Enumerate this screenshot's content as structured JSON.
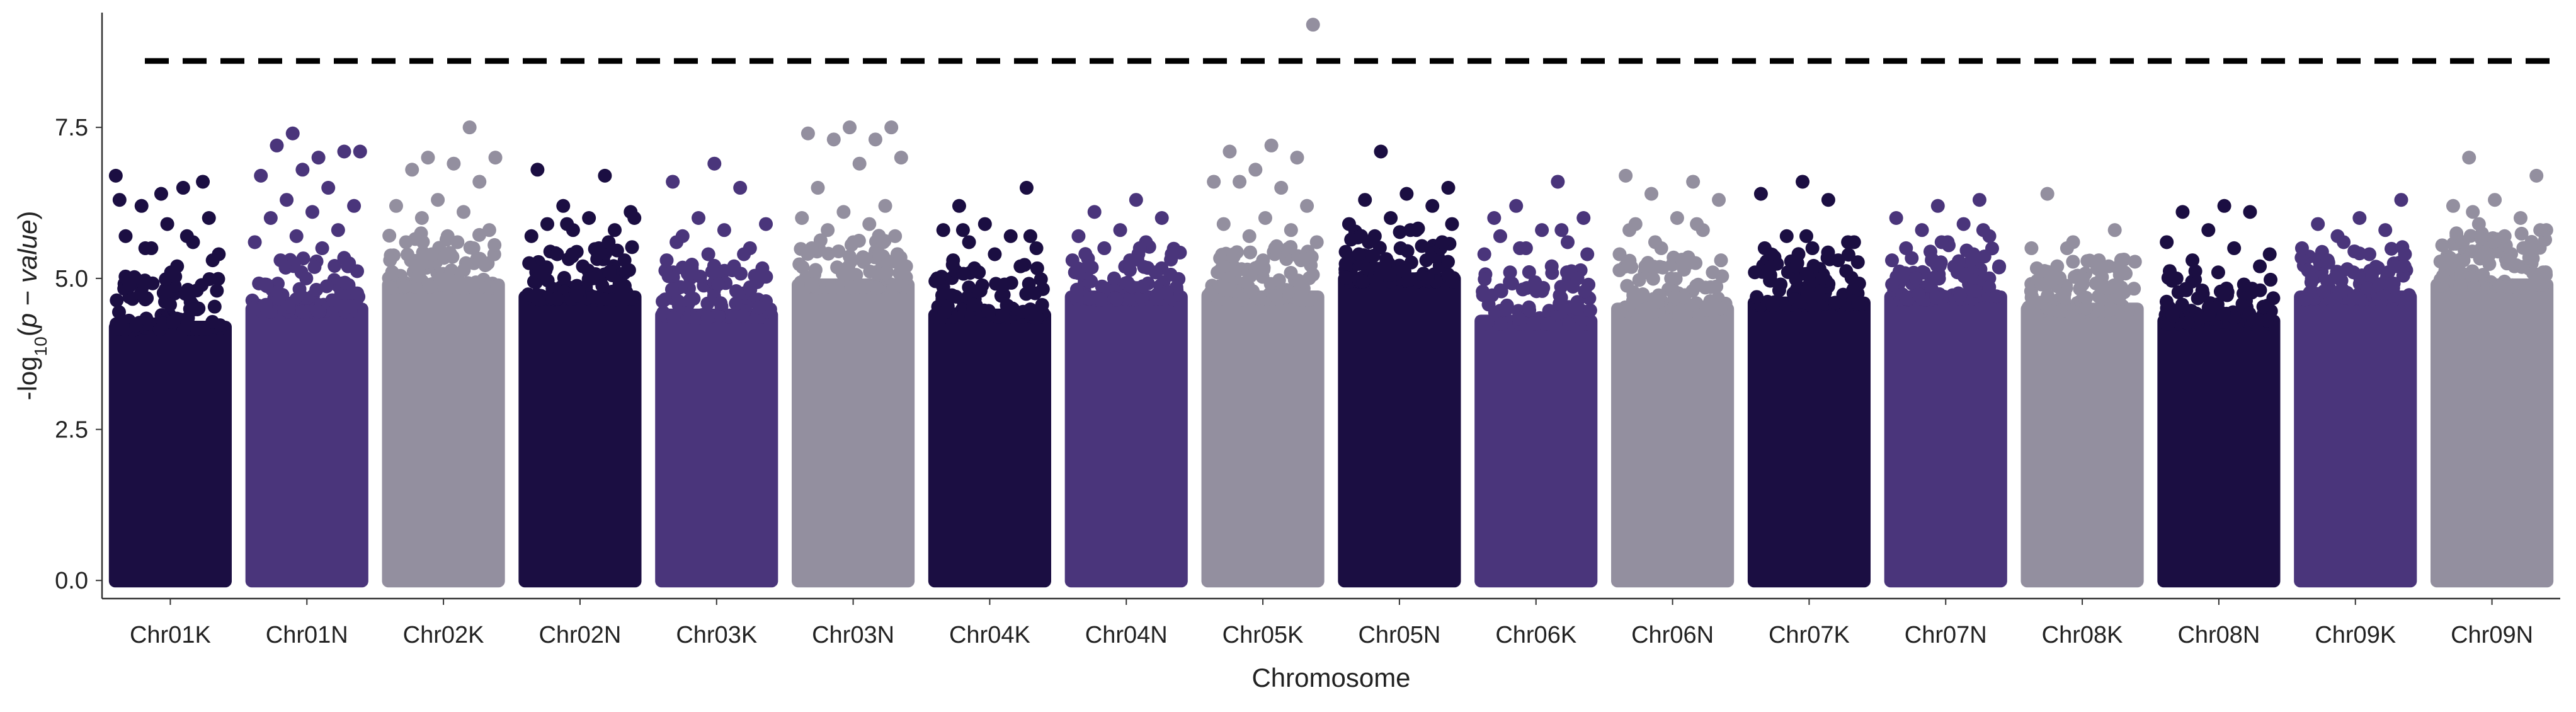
{
  "chart_data": {
    "type": "scatter",
    "subtype": "manhattan",
    "title": "",
    "xlabel": "Chromosome",
    "ylabel": {
      "prefix": "-log",
      "subscript": "10",
      "open": "(",
      "p": "p",
      "minus": " − ",
      "value": "value",
      "close": ")"
    },
    "ylim": [
      -0.3,
      9.4
    ],
    "yticks": [
      0.0,
      2.5,
      5.0,
      7.5
    ],
    "ytick_labels": [
      "0.0",
      "2.5",
      "5.0",
      "7.5"
    ],
    "grid": false,
    "legend": "none",
    "threshold": 8.6,
    "threshold_style": "dashed",
    "colors": [
      "#1b0e42",
      "#4a357b",
      "#938f9f"
    ],
    "categories": [
      "Chr01K",
      "Chr01N",
      "Chr02K",
      "Chr02N",
      "Chr03K",
      "Chr03N",
      "Chr04K",
      "Chr04N",
      "Chr05K",
      "Chr05N",
      "Chr06K",
      "Chr06N",
      "Chr07K",
      "Chr07N",
      "Chr08K",
      "Chr08N",
      "Chr09K",
      "Chr09N"
    ],
    "chromosomes": [
      {
        "name": "Chr01K",
        "density_top": 4.3,
        "max": 6.7
      },
      {
        "name": "Chr01N",
        "density_top": 4.6,
        "max": 7.4
      },
      {
        "name": "Chr02K",
        "density_top": 5.0,
        "max": 7.5
      },
      {
        "name": "Chr02N",
        "density_top": 4.8,
        "max": 6.8
      },
      {
        "name": "Chr03K",
        "density_top": 4.5,
        "max": 6.9
      },
      {
        "name": "Chr03N",
        "density_top": 5.0,
        "max": 7.5
      },
      {
        "name": "Chr04K",
        "density_top": 4.5,
        "max": 6.5
      },
      {
        "name": "Chr04N",
        "density_top": 4.8,
        "max": 6.3
      },
      {
        "name": "Chr05K",
        "density_top": 4.8,
        "max": 9.2
      },
      {
        "name": "Chr05N",
        "density_top": 5.1,
        "max": 7.1
      },
      {
        "name": "Chr06K",
        "density_top": 4.4,
        "max": 6.6
      },
      {
        "name": "Chr06N",
        "density_top": 4.6,
        "max": 6.7
      },
      {
        "name": "Chr07K",
        "density_top": 4.7,
        "max": 6.6
      },
      {
        "name": "Chr07N",
        "density_top": 4.8,
        "max": 6.3
      },
      {
        "name": "Chr08K",
        "density_top": 4.6,
        "max": 6.4
      },
      {
        "name": "Chr08N",
        "density_top": 4.4,
        "max": 6.2
      },
      {
        "name": "Chr09K",
        "density_top": 4.8,
        "max": 6.3
      },
      {
        "name": "Chr09N",
        "density_top": 5.0,
        "max": 7.0
      }
    ],
    "outliers": [
      {
        "chr": "Chr01K",
        "y": [
          6.7,
          6.5,
          6.2,
          6.0,
          5.9,
          5.7,
          5.6,
          5.5,
          5.4,
          5.2,
          5.0,
          6.6,
          6.4,
          6.3,
          5.7,
          5.5,
          5.3,
          5.1,
          4.9,
          4.8
        ]
      },
      {
        "chr": "Chr01N",
        "y": [
          7.4,
          7.1,
          7.0,
          7.2,
          7.1,
          6.8,
          6.7,
          6.5,
          6.3,
          6.2,
          6.1,
          6.0,
          5.8,
          5.7,
          5.6,
          5.5,
          5.3,
          5.2,
          5.0,
          4.9
        ]
      },
      {
        "chr": "Chr02K",
        "y": [
          7.5,
          7.0,
          7.0,
          6.9,
          6.8,
          6.6,
          6.3,
          6.2,
          6.1,
          6.0,
          5.8,
          5.7,
          5.6,
          5.5,
          5.4,
          5.3,
          5.6,
          5.2
        ]
      },
      {
        "chr": "Chr02N",
        "y": [
          6.8,
          6.7,
          6.2,
          6.1,
          6.0,
          5.9,
          5.8,
          5.8,
          5.7,
          5.5,
          5.4,
          5.3,
          5.2,
          5.1,
          5.6,
          5.9,
          6.0,
          5.0
        ]
      },
      {
        "chr": "Chr03K",
        "y": [
          6.9,
          6.6,
          6.5,
          6.0,
          5.9,
          5.8,
          5.7,
          5.5,
          5.4,
          5.3,
          5.2,
          5.1,
          5.0,
          4.9,
          5.6,
          5.4
        ]
      },
      {
        "chr": "Chr03N",
        "y": [
          7.5,
          7.5,
          7.4,
          7.3,
          7.3,
          7.0,
          6.9,
          6.5,
          6.2,
          6.1,
          6.0,
          5.9,
          5.8,
          5.7,
          5.6,
          5.5,
          5.4
        ]
      },
      {
        "chr": "Chr04K",
        "y": [
          6.2,
          6.5,
          5.9,
          5.8,
          5.7,
          5.6,
          5.5,
          5.4,
          5.3,
          5.2,
          5.1,
          5.0,
          4.9,
          5.8,
          5.7
        ]
      },
      {
        "chr": "Chr04N",
        "y": [
          6.3,
          6.1,
          6.0,
          5.8,
          5.7,
          5.6,
          5.5,
          5.4,
          5.3,
          5.2,
          5.1,
          5.0,
          5.3,
          5.5
        ]
      },
      {
        "chr": "Chr05K",
        "y": [
          9.2,
          7.2,
          7.1,
          7.0,
          6.8,
          6.6,
          6.5,
          6.6,
          6.2,
          6.0,
          5.9,
          5.8,
          5.7,
          5.6,
          5.5,
          5.4,
          5.3,
          5.2,
          5.1
        ]
      },
      {
        "chr": "Chr05N",
        "y": [
          7.1,
          6.5,
          6.4,
          6.3,
          6.2,
          6.0,
          5.9,
          5.8,
          5.7,
          5.6,
          5.5,
          5.4,
          5.3,
          5.2,
          5.9,
          5.8,
          5.6
        ]
      },
      {
        "chr": "Chr06K",
        "y": [
          6.6,
          6.2,
          6.0,
          5.8,
          5.7,
          5.6,
          5.5,
          5.4,
          5.2,
          5.1,
          5.0,
          4.9,
          6.0,
          5.8,
          5.5,
          5.4
        ]
      },
      {
        "chr": "Chr06N",
        "y": [
          6.7,
          6.6,
          6.4,
          6.3,
          6.0,
          5.9,
          5.8,
          5.5,
          5.4,
          5.3,
          5.2,
          5.1,
          5.0,
          5.8,
          5.9,
          5.6
        ]
      },
      {
        "chr": "Chr07K",
        "y": [
          6.6,
          6.4,
          6.3,
          5.7,
          5.6,
          5.5,
          5.4,
          5.3,
          5.2,
          5.1,
          5.0,
          4.9,
          5.6,
          5.7,
          5.5
        ]
      },
      {
        "chr": "Chr07N",
        "y": [
          6.3,
          6.2,
          6.0,
          5.9,
          5.8,
          5.7,
          5.6,
          5.5,
          5.4,
          5.3,
          5.2,
          5.1,
          5.0,
          5.8,
          5.6
        ]
      },
      {
        "chr": "Chr08K",
        "y": [
          6.4,
          5.8,
          5.6,
          5.5,
          5.3,
          5.2,
          5.1,
          5.0,
          4.9,
          5.2,
          5.5
        ]
      },
      {
        "chr": "Chr08N",
        "y": [
          6.2,
          6.1,
          6.1,
          5.8,
          5.6,
          5.5,
          5.3,
          5.2,
          5.1,
          5.0,
          4.9,
          4.8,
          5.4
        ]
      },
      {
        "chr": "Chr09K",
        "y": [
          6.3,
          6.0,
          5.9,
          5.8,
          5.6,
          5.5,
          5.4,
          5.3,
          5.2,
          5.1,
          5.0,
          4.9,
          5.7,
          5.4
        ]
      },
      {
        "chr": "Chr09N",
        "y": [
          7.0,
          6.7,
          6.3,
          6.2,
          6.0,
          5.9,
          5.8,
          5.7,
          5.6,
          5.5,
          5.4,
          5.3,
          5.2,
          6.1,
          5.8
        ]
      }
    ]
  }
}
